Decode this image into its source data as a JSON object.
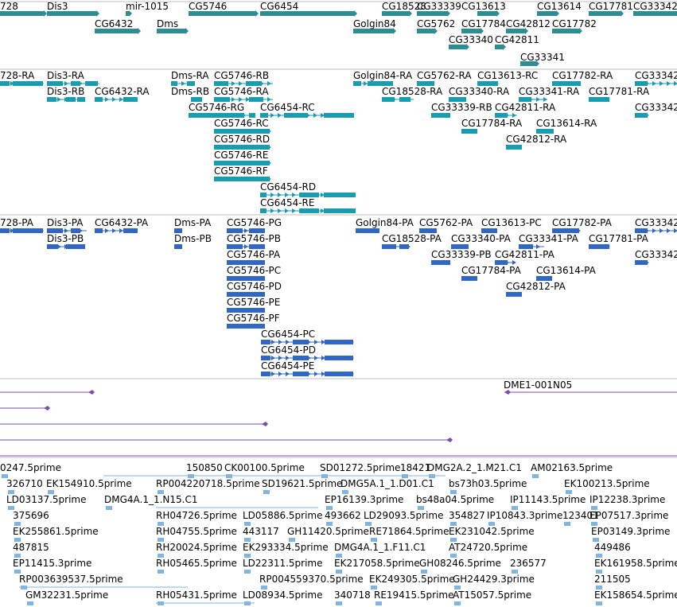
{
  "colors": {
    "gene": "#2e8c93",
    "transcript": "#1a9cb0",
    "protein": "#3066c8",
    "clone": "#7a4fa8",
    "est": "#7fb5df",
    "divider": "#bfbfbf",
    "text": "#000000"
  },
  "tracks": {
    "genes": {
      "labels": [
        "728",
        "Dis3",
        "mir-1015",
        "CG5746",
        "CG6454",
        "CG18528",
        "CG33339",
        "CG13613",
        "CG13614",
        "CG17781",
        "CG33342",
        "CG6432",
        "Dms",
        "Golgin84",
        "CG5762",
        "CG17784",
        "CG42812",
        "CG17782",
        "CG33340",
        "CG42811",
        "CG33341"
      ]
    },
    "transcripts": {
      "labels": [
        "728-RA",
        "Dis3-RA",
        "Dms-RA",
        "CG5746-RB",
        "Golgin84-RA",
        "CG5762-RA",
        "CG13613-RC",
        "CG17782-RA",
        "CG33342",
        "Dis3-RB",
        "CG6432-RA",
        "Dms-RB",
        "CG5746-RA",
        "CG18528-RA",
        "CG33340-RA",
        "CG33341-RA",
        "CG17781-RA",
        "CG5746-RG",
        "CG6454-RC",
        "CG33339-RB",
        "CG42811-RA",
        "CG33342",
        "CG5746-RC",
        "CG17784-RA",
        "CG13614-RA",
        "CG5746-RD",
        "CG42812-RA",
        "CG5746-RE",
        "CG5746-RF",
        "CG6454-RD",
        "CG6454-RE"
      ]
    },
    "proteins": {
      "labels": [
        "728-PA",
        "Dis3-PA",
        "CG6432-PA",
        "Dms-PA",
        "CG5746-PG",
        "Golgin84-PA",
        "CG5762-PA",
        "CG13613-PC",
        "CG17782-PA",
        "CG33342",
        "Dis3-PB",
        "Dms-PB",
        "CG5746-PB",
        "CG18528-PA",
        "CG33340-PA",
        "CG33341-PA",
        "CG17781-PA",
        "CG5746-PA",
        "CG33339-PB",
        "CG42811-PA",
        "CG33342",
        "CG5746-PC",
        "CG17784-PA",
        "CG13614-PA",
        "CG5746-PD",
        "CG42812-PA",
        "CG5746-PE",
        "CG5746-PF",
        "CG6454-PC",
        "CG6454-PD",
        "CG6454-PE"
      ]
    },
    "clones": {
      "labels": [
        "DME1-001N05"
      ]
    },
    "ests": {
      "labels": [
        "0247.5prime",
        "150850",
        "CK00100.5prime",
        "SD01272.5prime",
        "18421",
        "DMG2A.2_1.M21.C1",
        "AM02163.5prime",
        "326710",
        "EK154910.5prime",
        "RP004220718.5prime",
        "SD19621.5prime",
        "DMG5A.1_1.D01.C1",
        "bs73h03.5prime",
        "EK100213.5prime",
        "LD03137.5prime",
        "DMG4A.1_1.N15.C1",
        "EP16139.3prime",
        "bs48a04.5prime",
        "IP11143.5prime",
        "IP12238.3prime",
        "375696",
        "RH04726.5prime",
        "LD05886.5prime",
        "493662",
        "LD29093.5prime",
        "354827",
        "IP10843.3prime",
        "123401",
        "EP07517.3prime",
        "EK255861.5prime",
        "RH04755.5prime",
        "443117",
        "GH11420.5prime",
        "RE71864.5prime",
        "EK231042.5prime",
        "EP03149.3prime",
        "487815",
        "RH20024.5prime",
        "EK293334.5prime",
        "DMG4A.1_1.F11.C1",
        "AT24720.5prime",
        "449486",
        "EP11415.3prime",
        "RH05465.5prime",
        "LD22311.5prime",
        "EK217058.5prime",
        "GH08246.5prime",
        "236577",
        "EK161958.5prime",
        "RP003639537.5prime",
        "RP004559370.5prime",
        "EK249305.5prime",
        "GH24429.3prime",
        "211505",
        "GM32231.5prime",
        "RH05431.5prime",
        "LD08934.5prime",
        "340718",
        "RE19415.5prime",
        "AT15057.5prime",
        "EK158654.5prime"
      ]
    }
  }
}
